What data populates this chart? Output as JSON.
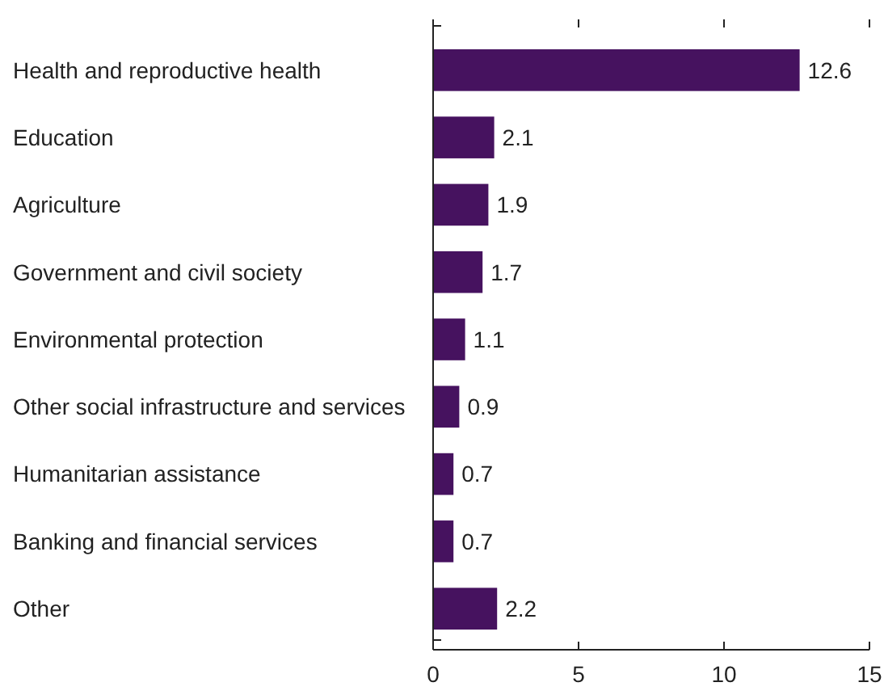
{
  "chart_data": {
    "type": "bar",
    "orientation": "horizontal",
    "categories": [
      "Health and reproductive health",
      "Education",
      "Agriculture",
      "Government and civil society",
      "Environmental protection",
      "Other social infrastructure and services",
      "Humanitarian assistance",
      "Banking and financial services",
      "Other"
    ],
    "values": [
      12.6,
      2.1,
      1.9,
      1.7,
      1.1,
      0.9,
      0.7,
      0.7,
      2.2
    ],
    "color": "#46125f",
    "xlim": [
      0,
      15
    ],
    "xticks": [
      0,
      5,
      10,
      15
    ],
    "data_labels": true,
    "grid": false
  }
}
